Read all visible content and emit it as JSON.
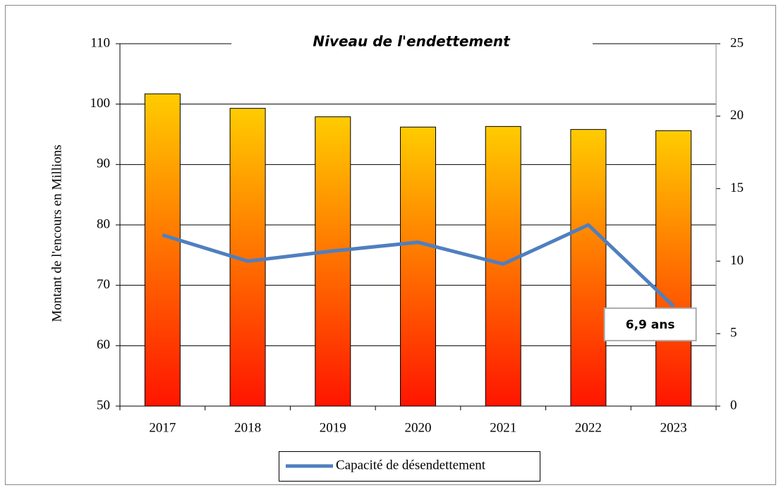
{
  "chart_data": {
    "type": "bar",
    "title": "Niveau de l'endettement",
    "y_label": "Montant de l'encours en Millions",
    "categories": [
      "2017",
      "2018",
      "2019",
      "2020",
      "2021",
      "2022",
      "2023"
    ],
    "series": [
      {
        "values": [
          101.7,
          99.3,
          97.9,
          96.2,
          96.3,
          95.8,
          95.6
        ],
        "color": "#ffcc00",
        "gradient_to": "#ff1500"
      },
      {
        "name": "Capacité de désendettement",
        "type": "line",
        "axis": "y2",
        "color": "#4f7fbf",
        "values": [
          11.8,
          10.0,
          10.7,
          11.3,
          9.8,
          12.5,
          6.9
        ],
        "value_labels": [
          null,
          null,
          null,
          null,
          null,
          null,
          "6,9 ans"
        ]
      }
    ],
    "ylim": [
      50,
      110
    ],
    "yticks": [
      50,
      60,
      70,
      80,
      90,
      100,
      110
    ],
    "y2lim": [
      0,
      25
    ],
    "y2ticks": [
      0,
      5,
      10,
      15,
      20,
      25
    ],
    "grid": true,
    "legend": "bottom"
  }
}
